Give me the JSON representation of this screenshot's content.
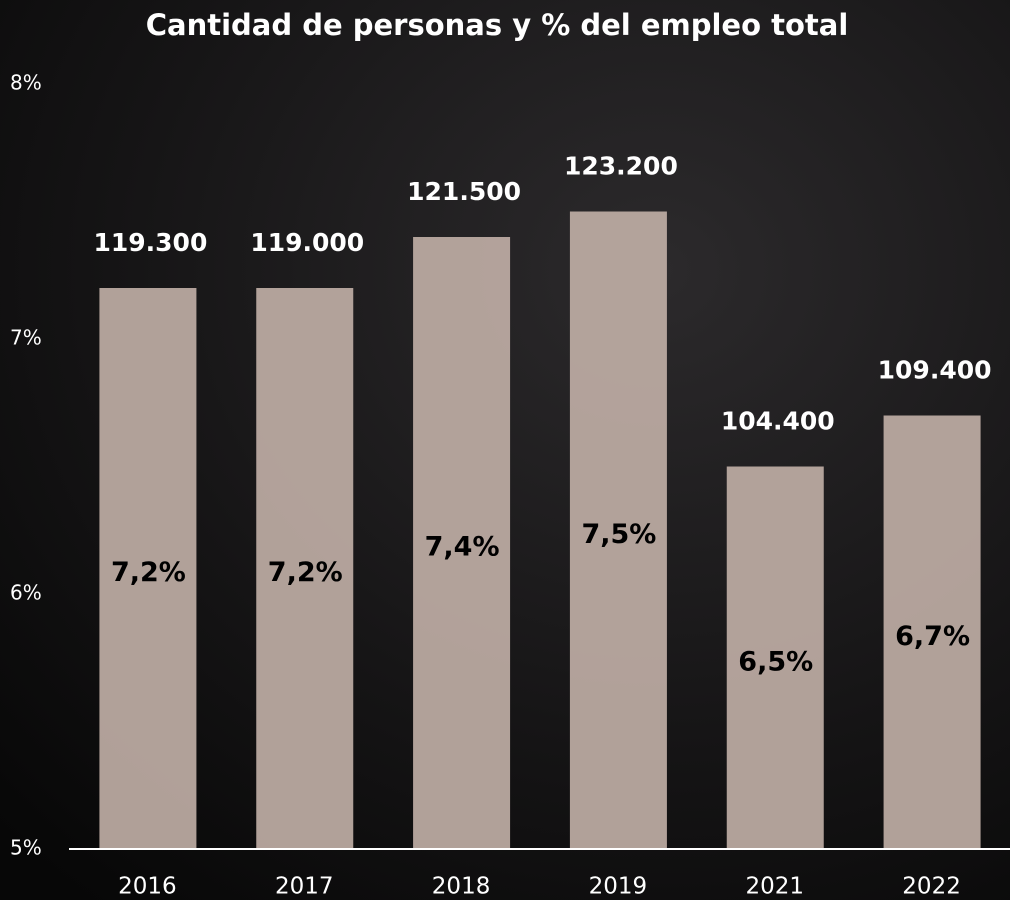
{
  "chart_data": {
    "type": "bar",
    "title": "Cantidad de personas y % del empleo total",
    "categories": [
      "2016",
      "2017",
      "2018",
      "2019",
      "2021",
      "2022"
    ],
    "values": [
      7.2,
      7.2,
      7.4,
      7.5,
      6.5,
      6.7
    ],
    "value_labels": [
      "7,2%",
      "7,2%",
      "7,4%",
      "7,5%",
      "6,5%",
      "6,7%"
    ],
    "persons": {
      "values": [
        119300,
        119000,
        121500,
        123200,
        104400,
        109400
      ],
      "value_labels": [
        "119.300",
        "119.000",
        "121.500",
        "123.200",
        "104.400",
        "109.400"
      ]
    },
    "color": "#bfaea5",
    "ylim": [
      5,
      8
    ],
    "yticks": [
      {
        "value": 5,
        "label": "5%"
      },
      {
        "value": 6,
        "label": "6%"
      },
      {
        "value": 7,
        "label": "7%"
      },
      {
        "value": 8,
        "label": "8%"
      }
    ],
    "grid": false
  }
}
